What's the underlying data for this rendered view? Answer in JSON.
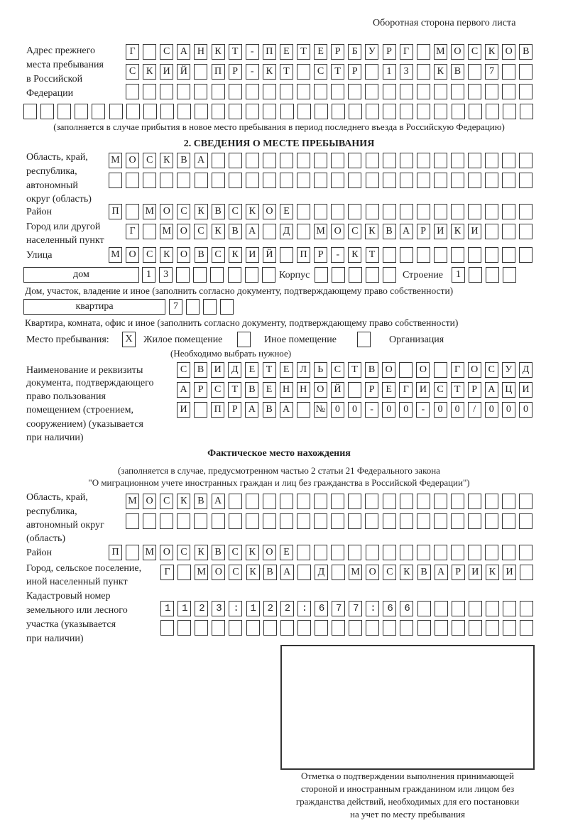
{
  "header": "Оборотная сторона первого листа",
  "prev_address": {
    "label": [
      "Адрес прежнего",
      "места пребывания",
      "в Российской",
      "Федерации"
    ],
    "rows": [
      "Г САНКТ-ПЕТЕРБУРГ МОСКОВ",
      "СКИЙ ПР-КТ СТР 13 КВ 7  ",
      "                        ",
      "                              "
    ],
    "note": "(заполняется в случае прибытия в новое место пребывания в период последнего въезда в Российскую Федерацию)"
  },
  "section2": {
    "title": "2. СВЕДЕНИЯ О МЕСТЕ ПРЕБЫВАНИЯ",
    "region_label": [
      "Область, край,",
      "республика,",
      "автономный",
      "округ (область)"
    ],
    "region_rows": [
      "МОСКВА                   ",
      "                         "
    ],
    "district_label": "Район",
    "district_row": "П МОСКВСКОЕ              ",
    "city_label": [
      "Город или другой",
      "населенный пункт"
    ],
    "city_row": "Г МОСКВА Д МОСКВАРИКИ   ",
    "street_label": "Улица",
    "street_row": "МОСКОВСКИЙ ПР-КТ         ",
    "house_type": "дом",
    "house_row": "13      ",
    "korpus_label": "Корпус",
    "korpus_row": "     ",
    "stroenie_label": "Строение",
    "stroenie_row": "1   ",
    "house_note": "Дом, участок, владение и иное (заполнить согласно документу, подтверждающему право собственности)",
    "flat_type": "квартира",
    "flat_row": "7   ",
    "flat_note": "Квартира, комната, офис и иное (заполнить согласно документу, подтверждающему право собственности)",
    "stay_label": "Место пребывания:",
    "stay_options": [
      {
        "mark": "X",
        "label": "Жилое помещение"
      },
      {
        "mark": "",
        "label": "Иное помещение"
      },
      {
        "mark": "",
        "label": "Организация"
      }
    ],
    "stay_note": "(Необходимо выбрать нужное)",
    "doc_label": [
      "Наименование и реквизиты",
      "документа, подтверждающего",
      "право пользования",
      "помещением (строением,",
      "сооружением) (указывается",
      "при наличии)"
    ],
    "doc_rows": [
      "СВИДЕТЕЛЬСТВО О ГОСУД",
      "АРСТВЕННОЙ РЕГИСТРАЦИ",
      "И ПРАВА №00-00-00/000"
    ]
  },
  "actual": {
    "title": "Фактическое место нахождения",
    "subtitle": [
      "(заполняется в случае, предусмотренном частью 2 статьи 21 Федерального закона",
      "\"О миграционном учете иностранных граждан и лиц без гражданства в Российской Федерации\")"
    ],
    "region_label": [
      "Область, край,",
      "республика,",
      "автономный округ",
      "(область)"
    ],
    "region_rows": [
      "МОСКВА                  ",
      "                        "
    ],
    "district_label": "Район",
    "district_row": "П МОСКВСКОЕ              ",
    "city_label": [
      "Город, сельское поселение,",
      "иной населенный пункт"
    ],
    "city_row": "Г МОСКВА Д МОСКВАРИКИ ",
    "cadastre_label": [
      "Кадастровый номер",
      "земельного или лесного",
      "участка (указывается",
      "при наличии)"
    ],
    "cadastre_rows": [
      "1123:122:677:66       ",
      "                      "
    ],
    "stamp_caption": [
      "Отметка о подтверждении выполнения принимающей",
      "стороной и иностранным гражданином или лицом без",
      "гражданства действий, необходимых для его постановки",
      "на учет по месту пребывания"
    ]
  }
}
